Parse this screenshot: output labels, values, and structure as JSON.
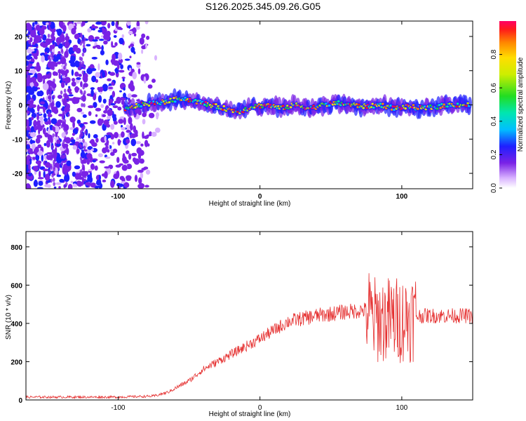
{
  "title": "S126.2025.345.09.26.G05",
  "chart_data": [
    {
      "type": "heatmap",
      "xlabel": "Height of straight line (km)",
      "ylabel": "Frequency (Hz)",
      "xlim": [
        -165,
        150
      ],
      "ylim": [
        -24.5,
        24.5
      ],
      "xticks": [
        "-100",
        "0",
        "100"
      ],
      "yticks": [
        "20",
        "10",
        "0",
        "-10",
        "-20"
      ],
      "colorbar": {
        "label": "Normalized spectral amplitude",
        "range": [
          0,
          1
        ],
        "ticks": [
          "0.0",
          "0.2",
          "0.4",
          "0.6",
          "0.8"
        ]
      },
      "ridge": {
        "x": [
          -95,
          -85,
          -75,
          -65,
          -55,
          -45,
          -35,
          -25,
          -15,
          -5,
          5,
          15,
          25,
          35,
          45,
          55,
          65,
          75,
          85,
          95,
          105,
          115,
          125,
          135,
          148
        ],
        "y": [
          -1.5,
          0,
          0.5,
          1,
          2,
          1,
          0,
          -1,
          -2,
          -0.5,
          0,
          -1,
          0,
          -1,
          0,
          0.5,
          0,
          -0.5,
          0,
          -1,
          -0.5,
          -1,
          -0.5,
          0,
          0
        ]
      },
      "noise_region": {
        "x": [
          -165,
          -80
        ]
      },
      "grid": false
    },
    {
      "type": "line",
      "xlabel": "Height of straight line (km)",
      "ylabel": "SNR (10 * v/v)",
      "xlim": [
        -165,
        150
      ],
      "ylim": [
        0,
        880
      ],
      "xticks": [
        "-100",
        "0",
        "100"
      ],
      "yticks": [
        "0",
        "200",
        "400",
        "600",
        "800"
      ],
      "series": [
        {
          "color": "#e53030",
          "envelope": {
            "x": [
              -165,
              -100,
              -75,
              -65,
              -50,
              -40,
              -20,
              0,
              20,
              40,
              60,
              75,
              80,
              90,
              100,
              110,
              150
            ],
            "y": [
              15,
              15,
              20,
              40,
              100,
              160,
              240,
              320,
              410,
              440,
              460,
              470,
              420,
              420,
              420,
              440,
              440
            ]
          }
        }
      ],
      "grid": false
    }
  ]
}
